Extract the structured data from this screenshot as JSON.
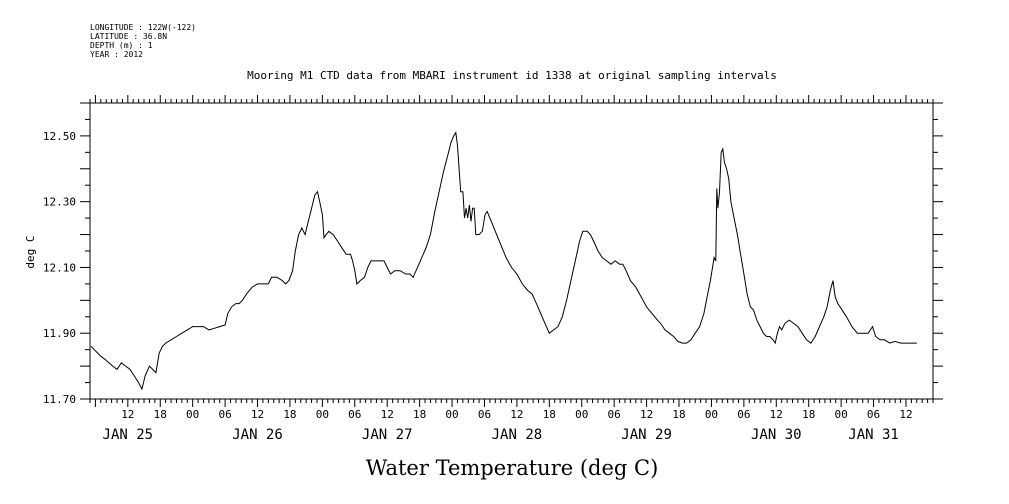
{
  "header": {
    "longitude": "LONGITUDE : 122W(-122)",
    "latitude": "LATITUDE : 36.8N",
    "depth": "DEPTH (m) : 1",
    "year": "YEAR : 2012"
  },
  "chart_data": {
    "type": "line",
    "title": "Mooring M1 CTD data from MBARI instrument id 1338 at original sampling intervals",
    "xlabel": "Water Temperature (deg C)",
    "ylabel": "deg C",
    "x_unit": "hours since 2012-01-25 00:00",
    "xlim": [
      5,
      161
    ],
    "ylim": [
      11.7,
      12.6
    ],
    "yticks": [
      11.7,
      11.9,
      12.1,
      12.3,
      12.5
    ],
    "ytick_labels": [
      "11.70",
      "11.90",
      "12.10",
      "12.30",
      "12.50"
    ],
    "hour_ticks": [
      {
        "x": 12,
        "label": "12"
      },
      {
        "x": 18,
        "label": "18"
      },
      {
        "x": 24,
        "label": "00"
      },
      {
        "x": 30,
        "label": "06"
      },
      {
        "x": 36,
        "label": "12"
      },
      {
        "x": 42,
        "label": "18"
      },
      {
        "x": 48,
        "label": "00"
      },
      {
        "x": 54,
        "label": "06"
      },
      {
        "x": 60,
        "label": "12"
      },
      {
        "x": 66,
        "label": "18"
      },
      {
        "x": 72,
        "label": "00"
      },
      {
        "x": 78,
        "label": "06"
      },
      {
        "x": 84,
        "label": "12"
      },
      {
        "x": 90,
        "label": "18"
      },
      {
        "x": 96,
        "label": "00"
      },
      {
        "x": 102,
        "label": "06"
      },
      {
        "x": 108,
        "label": "12"
      },
      {
        "x": 114,
        "label": "18"
      },
      {
        "x": 120,
        "label": "00"
      },
      {
        "x": 126,
        "label": "06"
      },
      {
        "x": 132,
        "label": "12"
      },
      {
        "x": 138,
        "label": "18"
      },
      {
        "x": 144,
        "label": "00"
      },
      {
        "x": 150,
        "label": "06"
      },
      {
        "x": 156,
        "label": "12"
      }
    ],
    "day_labels": [
      {
        "x": 12,
        "label": "JAN 25"
      },
      {
        "x": 36,
        "label": "JAN 26"
      },
      {
        "x": 60,
        "label": "JAN 27"
      },
      {
        "x": 84,
        "label": "JAN 28"
      },
      {
        "x": 108,
        "label": "JAN 29"
      },
      {
        "x": 132,
        "label": "JAN 30"
      },
      {
        "x": 150,
        "label": "JAN 31"
      }
    ],
    "grid": false,
    "series": [
      {
        "points": [
          [
            5.2,
            11.86
          ],
          [
            5.8,
            11.85
          ],
          [
            6.4,
            11.84
          ],
          [
            7.0,
            11.83
          ],
          [
            7.8,
            11.82
          ],
          [
            8.5,
            11.81
          ],
          [
            9.2,
            11.8
          ],
          [
            10.0,
            11.79
          ],
          [
            10.8,
            11.81
          ],
          [
            11.6,
            11.8
          ],
          [
            12.4,
            11.79
          ],
          [
            13.2,
            11.77
          ],
          [
            14.0,
            11.75
          ],
          [
            14.6,
            11.73
          ],
          [
            15.2,
            11.77
          ],
          [
            16.0,
            11.8
          ],
          [
            16.6,
            11.79
          ],
          [
            17.2,
            11.78
          ],
          [
            17.8,
            11.84
          ],
          [
            18.4,
            11.86
          ],
          [
            19.0,
            11.87
          ],
          [
            20.0,
            11.88
          ],
          [
            21.0,
            11.89
          ],
          [
            22.0,
            11.9
          ],
          [
            23.0,
            11.91
          ],
          [
            24.0,
            11.92
          ],
          [
            25.0,
            11.92
          ],
          [
            26.0,
            11.92
          ],
          [
            27.0,
            11.91
          ],
          [
            28.0,
            11.915
          ],
          [
            29.0,
            11.92
          ],
          [
            30.0,
            11.925
          ],
          [
            30.5,
            11.96
          ],
          [
            31.2,
            11.98
          ],
          [
            32.0,
            11.99
          ],
          [
            32.6,
            11.99
          ],
          [
            33.2,
            12.0
          ],
          [
            34.0,
            12.02
          ],
          [
            35.0,
            12.04
          ],
          [
            36.0,
            12.05
          ],
          [
            37.0,
            12.05
          ],
          [
            38.0,
            12.05
          ],
          [
            38.6,
            12.07
          ],
          [
            39.6,
            12.07
          ],
          [
            40.6,
            12.06
          ],
          [
            41.2,
            12.05
          ],
          [
            41.8,
            12.06
          ],
          [
            42.5,
            12.09
          ],
          [
            43.0,
            12.15
          ],
          [
            43.6,
            12.2
          ],
          [
            44.2,
            12.22
          ],
          [
            44.8,
            12.2
          ],
          [
            45.4,
            12.24
          ],
          [
            46.0,
            12.28
          ],
          [
            46.6,
            12.32
          ],
          [
            47.1,
            12.33
          ],
          [
            47.5,
            12.3
          ],
          [
            48.0,
            12.26
          ],
          [
            48.3,
            12.19
          ],
          [
            48.7,
            12.2
          ],
          [
            49.2,
            12.21
          ],
          [
            50.0,
            12.2
          ],
          [
            50.8,
            12.18
          ],
          [
            51.6,
            12.16
          ],
          [
            52.4,
            12.14
          ],
          [
            53.2,
            12.14
          ],
          [
            53.6,
            12.12
          ],
          [
            54.0,
            12.09
          ],
          [
            54.4,
            12.05
          ],
          [
            55.0,
            12.06
          ],
          [
            55.8,
            12.07
          ],
          [
            56.4,
            12.1
          ],
          [
            57.0,
            12.12
          ],
          [
            57.8,
            12.12
          ],
          [
            58.6,
            12.12
          ],
          [
            59.4,
            12.12
          ],
          [
            60.0,
            12.1
          ],
          [
            60.6,
            12.08
          ],
          [
            61.4,
            12.09
          ],
          [
            62.4,
            12.09
          ],
          [
            63.4,
            12.08
          ],
          [
            64.2,
            12.08
          ],
          [
            64.8,
            12.07
          ],
          [
            65.6,
            12.1
          ],
          [
            66.4,
            12.13
          ],
          [
            67.2,
            12.16
          ],
          [
            68.0,
            12.2
          ],
          [
            68.8,
            12.27
          ],
          [
            69.6,
            12.33
          ],
          [
            70.4,
            12.39
          ],
          [
            71.2,
            12.44
          ],
          [
            71.8,
            12.48
          ],
          [
            72.3,
            12.5
          ],
          [
            72.7,
            12.51
          ],
          [
            73.0,
            12.47
          ],
          [
            73.3,
            12.4
          ],
          [
            73.6,
            12.33
          ],
          [
            74.0,
            12.33
          ],
          [
            74.3,
            12.25
          ],
          [
            74.6,
            12.28
          ],
          [
            74.9,
            12.25
          ],
          [
            75.2,
            12.29
          ],
          [
            75.5,
            12.24
          ],
          [
            75.8,
            12.28
          ],
          [
            76.1,
            12.28
          ],
          [
            76.4,
            12.2
          ],
          [
            77.0,
            12.2
          ],
          [
            77.6,
            12.21
          ],
          [
            78.1,
            12.26
          ],
          [
            78.5,
            12.27
          ],
          [
            79.0,
            12.25
          ],
          [
            80.0,
            12.21
          ],
          [
            81.0,
            12.17
          ],
          [
            82.0,
            12.13
          ],
          [
            83.0,
            12.1
          ],
          [
            84.0,
            12.08
          ],
          [
            85.0,
            12.05
          ],
          [
            86.0,
            12.03
          ],
          [
            86.8,
            12.02
          ],
          [
            87.6,
            11.99
          ],
          [
            88.4,
            11.96
          ],
          [
            89.2,
            11.93
          ],
          [
            90.0,
            11.9
          ],
          [
            90.8,
            11.91
          ],
          [
            91.6,
            11.92
          ],
          [
            92.4,
            11.95
          ],
          [
            93.2,
            12.0
          ],
          [
            94.0,
            12.06
          ],
          [
            94.8,
            12.12
          ],
          [
            95.6,
            12.18
          ],
          [
            96.2,
            12.21
          ],
          [
            97.0,
            12.21
          ],
          [
            97.6,
            12.2
          ],
          [
            98.2,
            12.18
          ],
          [
            99.0,
            12.15
          ],
          [
            99.8,
            12.13
          ],
          [
            100.6,
            12.12
          ],
          [
            101.4,
            12.11
          ],
          [
            102.2,
            12.12
          ],
          [
            103.0,
            12.11
          ],
          [
            103.6,
            12.11
          ],
          [
            104.2,
            12.09
          ],
          [
            105.0,
            12.06
          ],
          [
            106.0,
            12.04
          ],
          [
            107.0,
            12.01
          ],
          [
            108.0,
            11.98
          ],
          [
            109.0,
            11.96
          ],
          [
            110.0,
            11.94
          ],
          [
            110.6,
            11.93
          ],
          [
            111.4,
            11.91
          ],
          [
            112.2,
            11.9
          ],
          [
            113.0,
            11.89
          ],
          [
            113.8,
            11.875
          ],
          [
            114.6,
            11.87
          ],
          [
            115.4,
            11.87
          ],
          [
            116.2,
            11.88
          ],
          [
            117.0,
            11.9
          ],
          [
            117.8,
            11.92
          ],
          [
            118.6,
            11.96
          ],
          [
            119.2,
            12.01
          ],
          [
            119.8,
            12.06
          ],
          [
            120.2,
            12.1
          ],
          [
            120.5,
            12.13
          ],
          [
            120.8,
            12.12
          ],
          [
            121.0,
            12.34
          ],
          [
            121.2,
            12.28
          ],
          [
            121.5,
            12.33
          ],
          [
            121.8,
            12.45
          ],
          [
            122.1,
            12.46
          ],
          [
            122.4,
            12.42
          ],
          [
            122.8,
            12.4
          ],
          [
            123.2,
            12.37
          ],
          [
            123.6,
            12.3
          ],
          [
            124.2,
            12.25
          ],
          [
            124.8,
            12.2
          ],
          [
            125.4,
            12.14
          ],
          [
            126.0,
            12.08
          ],
          [
            126.6,
            12.02
          ],
          [
            127.2,
            11.98
          ],
          [
            127.8,
            11.97
          ],
          [
            128.4,
            11.94
          ],
          [
            129.0,
            11.92
          ],
          [
            129.6,
            11.9
          ],
          [
            130.2,
            11.89
          ],
          [
            130.8,
            11.89
          ],
          [
            131.4,
            11.88
          ],
          [
            131.8,
            11.87
          ],
          [
            132.2,
            11.9
          ],
          [
            132.6,
            11.92
          ],
          [
            133.0,
            11.91
          ],
          [
            133.6,
            11.93
          ],
          [
            134.4,
            11.94
          ],
          [
            135.2,
            11.93
          ],
          [
            136.0,
            11.92
          ],
          [
            136.8,
            11.9
          ],
          [
            137.6,
            11.88
          ],
          [
            138.4,
            11.87
          ],
          [
            139.2,
            11.89
          ],
          [
            140.0,
            11.92
          ],
          [
            140.8,
            11.95
          ],
          [
            141.4,
            11.98
          ],
          [
            142.0,
            12.03
          ],
          [
            142.5,
            12.06
          ],
          [
            142.9,
            12.01
          ],
          [
            143.4,
            11.99
          ],
          [
            144.2,
            11.97
          ],
          [
            145.0,
            11.95
          ],
          [
            146.0,
            11.92
          ],
          [
            147.0,
            11.9
          ],
          [
            148.0,
            11.9
          ],
          [
            149.0,
            11.9
          ],
          [
            149.8,
            11.92
          ],
          [
            150.4,
            11.89
          ],
          [
            151.2,
            11.88
          ],
          [
            152.0,
            11.88
          ],
          [
            153.0,
            11.87
          ],
          [
            154.0,
            11.875
          ],
          [
            155.0,
            11.87
          ],
          [
            156.0,
            11.87
          ],
          [
            157.0,
            11.87
          ],
          [
            158.0,
            11.87
          ]
        ]
      }
    ]
  }
}
